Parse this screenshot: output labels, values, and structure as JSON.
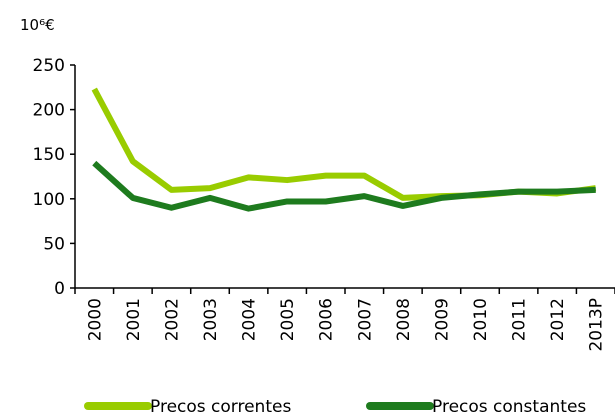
{
  "chart_data": {
    "type": "line",
    "y_axis_label": "10⁶€",
    "categories": [
      "2000",
      "2001",
      "2002",
      "2003",
      "2004",
      "2005",
      "2006",
      "2007",
      "2008",
      "2009",
      "2010",
      "2011",
      "2012",
      "2013P"
    ],
    "series": [
      {
        "name": "Precos correntes",
        "color": "#99cc00",
        "values": [
          223,
          142,
          110,
          112,
          124,
          121,
          126,
          126,
          101,
          103,
          104,
          108,
          106,
          112
        ]
      },
      {
        "name": "Precos constantes",
        "color": "#1e7b1e",
        "values": [
          140,
          101,
          90,
          101,
          89,
          97,
          97,
          103,
          92,
          101,
          105,
          108,
          108,
          110
        ]
      }
    ],
    "ylim": [
      0,
      250
    ],
    "yticks": [
      0,
      50,
      100,
      150,
      200,
      250
    ],
    "grid": false,
    "legend": "bottom"
  }
}
